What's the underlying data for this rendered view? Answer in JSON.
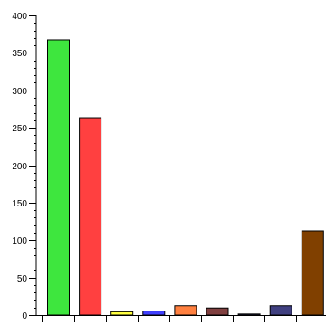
{
  "chart_data": {
    "type": "bar",
    "categories": [
      "",
      "",
      "",
      "",
      "",
      "",
      "",
      "",
      ""
    ],
    "values": [
      368,
      264,
      5,
      6,
      13,
      10,
      2,
      13,
      113
    ],
    "colors": [
      "#3ee63e",
      "#ff4040",
      "#ffff40",
      "#4040ff",
      "#ff8040",
      "#804040",
      "#404080",
      "#404080",
      "#804000"
    ],
    "title": "",
    "xlabel": "",
    "ylabel": "",
    "ylim": [
      0,
      400
    ],
    "yticks": [
      0,
      50,
      100,
      150,
      200,
      250,
      300,
      350,
      400
    ],
    "minor_ytick_step": 10,
    "grid": false,
    "legend": "none"
  }
}
